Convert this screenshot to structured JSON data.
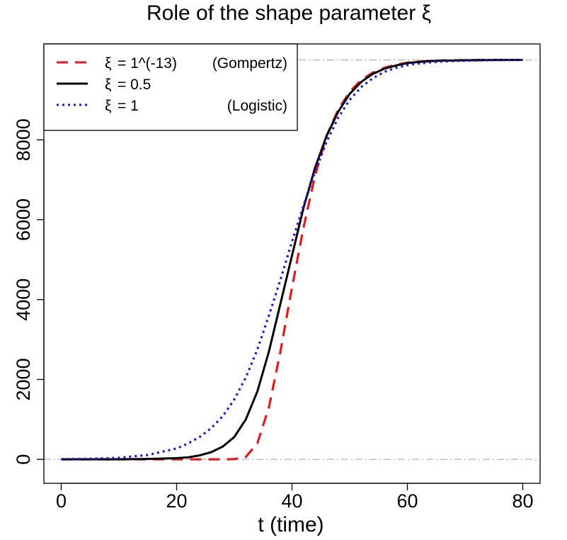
{
  "chart_data": {
    "type": "line",
    "title": "Role of the shape parameter ξ",
    "xlabel": "t (time)",
    "ylabel": "",
    "xlim": [
      -3,
      83
    ],
    "ylim": [
      -600,
      10400
    ],
    "x_ticks": [
      0,
      20,
      40,
      60,
      80
    ],
    "x_tick_labels": [
      "0",
      "20",
      "40",
      "60",
      "80"
    ],
    "y_ticks": [
      0,
      2000,
      4000,
      6000,
      8000
    ],
    "y_tick_labels": [
      "0",
      "2000",
      "4000",
      "6000",
      "8000"
    ],
    "reference_lines": [
      {
        "y": 0,
        "style": "dash-dot",
        "color": "#aaaaaa"
      },
      {
        "y": 10000,
        "style": "dash-dot",
        "color": "#aaaaaa"
      }
    ],
    "grid": false,
    "legend": {
      "position": "top-left",
      "entries": [
        {
          "symbol": "ξ",
          "label": "= 1^(-13)",
          "note": "(Gompertz)",
          "color": "#e31a1c",
          "dash": "dashed"
        },
        {
          "symbol": "ξ",
          "label": "= 0.5",
          "note": "",
          "color": "#000000",
          "dash": "solid"
        },
        {
          "symbol": "ξ",
          "label": "= 1",
          "note": "(Logistic)",
          "color": "#1a1acc",
          "dash": "dotted"
        }
      ]
    },
    "x": [
      0,
      5,
      10,
      15,
      20,
      22,
      24,
      26,
      28,
      30,
      32,
      34,
      36,
      38,
      40,
      42,
      44,
      46,
      48,
      50,
      52,
      54,
      56,
      58,
      60,
      62,
      64,
      66,
      70,
      75,
      80
    ],
    "series": [
      {
        "name": "ξ = 1^(-13) (Gompertz)",
        "color": "#e31a1c",
        "dash": "dashed",
        "values": [
          0,
          0,
          0,
          0,
          0,
          0,
          0,
          0,
          0,
          5,
          60,
          400,
          1300,
          2700,
          4300,
          5800,
          7100,
          8100,
          8750,
          9200,
          9500,
          9680,
          9800,
          9880,
          9930,
          9960,
          9975,
          9985,
          9995,
          10000,
          10000
        ]
      },
      {
        "name": "ξ = 0.5",
        "color": "#000000",
        "dash": "solid",
        "values": [
          0,
          0,
          0,
          10,
          30,
          50,
          100,
          180,
          320,
          560,
          1000,
          1700,
          2700,
          3900,
          5100,
          6300,
          7300,
          8100,
          8700,
          9150,
          9450,
          9650,
          9780,
          9860,
          9920,
          9950,
          9970,
          9982,
          9993,
          9999,
          10000
        ]
      },
      {
        "name": "ξ = 1 (Logistic)",
        "color": "#1a1acc",
        "dash": "dotted",
        "values": [
          5,
          15,
          40,
          110,
          270,
          400,
          560,
          780,
          1080,
          1500,
          2050,
          2750,
          3600,
          4500,
          5450,
          6350,
          7200,
          7950,
          8550,
          9000,
          9320,
          9540,
          9700,
          9800,
          9870,
          9910,
          9940,
          9960,
          9980,
          9995,
          10000
        ]
      }
    ]
  }
}
